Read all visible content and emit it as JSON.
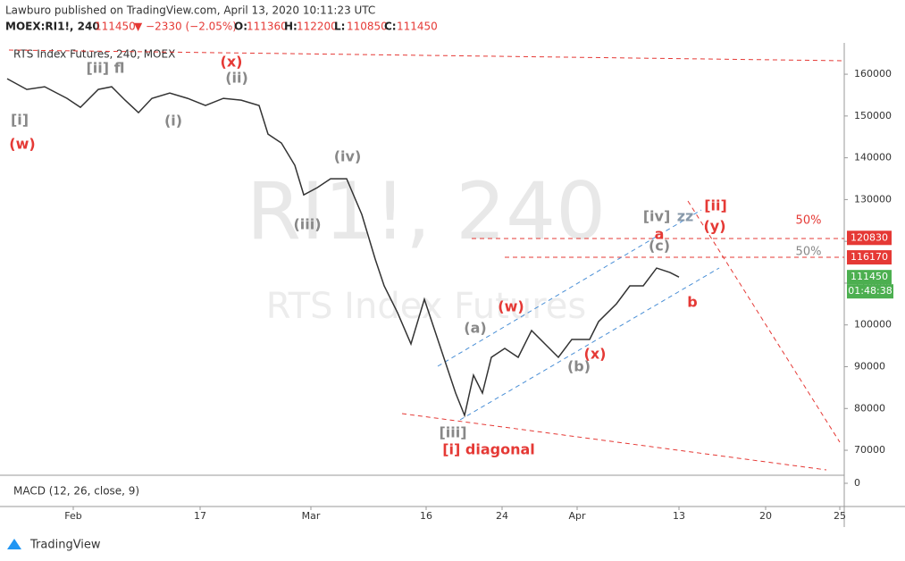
{
  "header": {
    "author_line": "Lawburo published on TradingView.com, April 13, 2020 10:11:23 UTC",
    "symbol": "MOEX:RI1!, 240",
    "last": 111450,
    "change": "▼ −2330 (−2.05%)",
    "ohlc": [
      {
        "label": "O:",
        "value": 111360
      },
      {
        "label": "H:",
        "value": 112200
      },
      {
        "label": "L:",
        "value": 110850
      },
      {
        "label": "C:",
        "value": 111450
      }
    ]
  },
  "footer": {
    "brand": "TradingView"
  },
  "chart_data": {
    "type": "line",
    "title": "RTS Index Futures, 240, MOEX",
    "watermark": [
      "RI1!, 240",
      "RTS Index Futures"
    ],
    "x": [
      0.8,
      3,
      5,
      7.5,
      9,
      11,
      12.5,
      14,
      15.5,
      17,
      19,
      21,
      23,
      25,
      27,
      29,
      30,
      31.5,
      33,
      34,
      35.5,
      37,
      38.8,
      40.5,
      42,
      43,
      44.5,
      46,
      47.5,
      49,
      51,
      52,
      53,
      54,
      55,
      56.5,
      58,
      59.5,
      61,
      62.5,
      64,
      66,
      67,
      69,
      70.5,
      72,
      73.5,
      75,
      76
    ],
    "series": [
      {
        "name": "RTS Index Futures",
        "color": "#333333",
        "values": [
          158930,
          156370,
          157000,
          154230,
          152090,
          156370,
          157000,
          153800,
          150810,
          154230,
          155510,
          154230,
          152520,
          154230,
          153800,
          152520,
          145680,
          143540,
          138200,
          131140,
          132850,
          134990,
          134990,
          126440,
          115750,
          109340,
          102920,
          95440,
          106130,
          96510,
          83690,
          78340,
          87960,
          83690,
          92240,
          94380,
          92240,
          98650,
          95440,
          92240,
          96510,
          96510,
          100790,
          105060,
          109340,
          109340,
          113610,
          112540,
          111450
        ]
      }
    ],
    "xlim": [
      0,
      94.5
    ],
    "xticks": [
      {
        "value": 8.2,
        "label": "Feb"
      },
      {
        "value": 22.4,
        "label": "17"
      },
      {
        "value": 34.8,
        "label": "Mar"
      },
      {
        "value": 47.7,
        "label": "16"
      },
      {
        "value": 56.2,
        "label": "24"
      },
      {
        "value": 64.6,
        "label": "Apr"
      },
      {
        "value": 76.0,
        "label": "13"
      },
      {
        "value": 85.7,
        "label": "20"
      },
      {
        "value": 94.0,
        "label": "25"
      }
    ],
    "ylim": [
      64450,
      167500
    ],
    "yticks": [
      160000,
      150000,
      140000,
      130000,
      120000,
      110000,
      100000,
      90000,
      80000,
      70000
    ],
    "price_labels": [
      {
        "value": 120830,
        "color": "#e53935"
      },
      {
        "value": 116170,
        "color": "#e53935"
      },
      {
        "value": 111450,
        "color": "#4caf50"
      }
    ],
    "countdown": "01:48:38",
    "macd": {
      "label": "MACD (12, 26, close, 9)",
      "yticks": [
        0
      ]
    },
    "annotations": [
      {
        "text": "[ii] fl",
        "color": "#888888"
      },
      {
        "text": "(x)",
        "color": "#e53935"
      },
      {
        "text": "(ii)",
        "color": "#888888"
      },
      {
        "text": "[i]",
        "color": "#888888"
      },
      {
        "text": "(w)",
        "color": "#e53935"
      },
      {
        "text": "(i)",
        "color": "#888888"
      },
      {
        "text": "(iv)",
        "color": "#888888"
      },
      {
        "text": "(iii)",
        "color": "#888888"
      },
      {
        "text": "(a)",
        "color": "#888888"
      },
      {
        "text": "(w)",
        "color": "#e53935"
      },
      {
        "text": "(x)",
        "color": "#e53935"
      },
      {
        "text": "(b)",
        "color": "#888888"
      },
      {
        "text": "[iii]",
        "color": "#888888"
      },
      {
        "text": "[i] diagonal",
        "color": "#e53935"
      },
      {
        "text": "[iv]",
        "color": "#888888"
      },
      {
        "text": "zz",
        "color": "#8899aa"
      },
      {
        "text": "[ii]",
        "color": "#e53935"
      },
      {
        "text": "(y)",
        "color": "#e53935"
      },
      {
        "text": "a",
        "color": "#e53935"
      },
      {
        "text": "(c)",
        "color": "#888888"
      },
      {
        "text": "b",
        "color": "#e53935"
      },
      {
        "text": "50%",
        "color": "#e53935"
      },
      {
        "text": "50%",
        "color": "#888888"
      }
    ]
  }
}
